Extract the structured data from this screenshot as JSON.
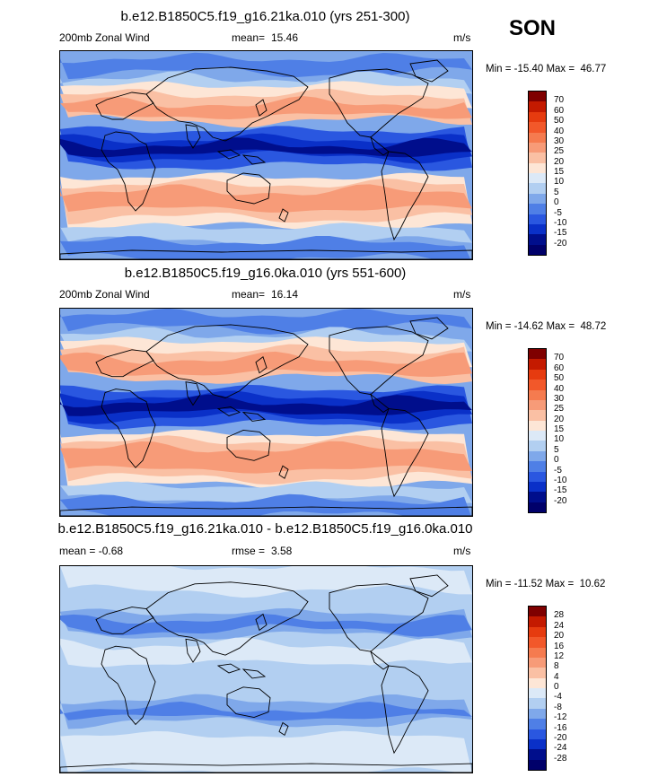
{
  "season": "SON",
  "units": "m/s",
  "panels": [
    {
      "title": "b.e12.B1850C5.f19_g16.21ka.010 (yrs 251-300)",
      "left_label": "200mb Zonal Wind",
      "stat_label": "mean=",
      "stat_value": "15.46",
      "units": "m/s",
      "minmax": "Min = -15.40 Max =  46.77",
      "colorbar_labels": [
        "70",
        "60",
        "50",
        "40",
        "30",
        "25",
        "20",
        "15",
        "10",
        "5",
        "0",
        "-5",
        "-10",
        "-15",
        "-20"
      ],
      "colors": [
        "#7f0000",
        "#c41a00",
        "#e63b0f",
        "#f2582a",
        "#f57b4f",
        "#f79b78",
        "#fac0a4",
        "#fde6d6",
        "#dce9f7",
        "#b2cff1",
        "#7fa8ea",
        "#4f7fe6",
        "#2a57e0",
        "#0a30c8",
        "#000e8c",
        "#00006a"
      ]
    },
    {
      "title": "b.e12.B1850C5.f19_g16.0ka.010 (yrs 551-600)",
      "left_label": "200mb Zonal Wind",
      "stat_label": "mean=",
      "stat_value": "16.14",
      "units": "m/s",
      "minmax": "Min = -14.62 Max =  48.72",
      "colorbar_labels": [
        "70",
        "60",
        "50",
        "40",
        "30",
        "25",
        "20",
        "15",
        "10",
        "5",
        "0",
        "-5",
        "-10",
        "-15",
        "-20"
      ],
      "colors": [
        "#7f0000",
        "#c41a00",
        "#e63b0f",
        "#f2582a",
        "#f57b4f",
        "#f79b78",
        "#fac0a4",
        "#fde6d6",
        "#dce9f7",
        "#b2cff1",
        "#7fa8ea",
        "#4f7fe6",
        "#2a57e0",
        "#0a30c8",
        "#000e8c",
        "#00006a"
      ]
    },
    {
      "title": "b.e12.B1850C5.f19_g16.21ka.010 - b.e12.B1850C5.f19_g16.0ka.010",
      "left_label": "mean =  -0.68",
      "stat_label": "rmse =",
      "stat_value": "3.58",
      "units": "m/s",
      "minmax": "Min = -11.52 Max =  10.62",
      "colorbar_labels": [
        "28",
        "24",
        "20",
        "16",
        "12",
        "8",
        "4",
        "0",
        "-4",
        "-8",
        "-12",
        "-16",
        "-20",
        "-24",
        "-28"
      ],
      "colors": [
        "#7f0000",
        "#c41a00",
        "#e63b0f",
        "#f2582a",
        "#f57b4f",
        "#f79b78",
        "#fac0a4",
        "#fde6d6",
        "#dce9f7",
        "#b2cff1",
        "#7fa8ea",
        "#4f7fe6",
        "#2a57e0",
        "#0a30c8",
        "#000e8c",
        "#00006a"
      ]
    }
  ]
}
